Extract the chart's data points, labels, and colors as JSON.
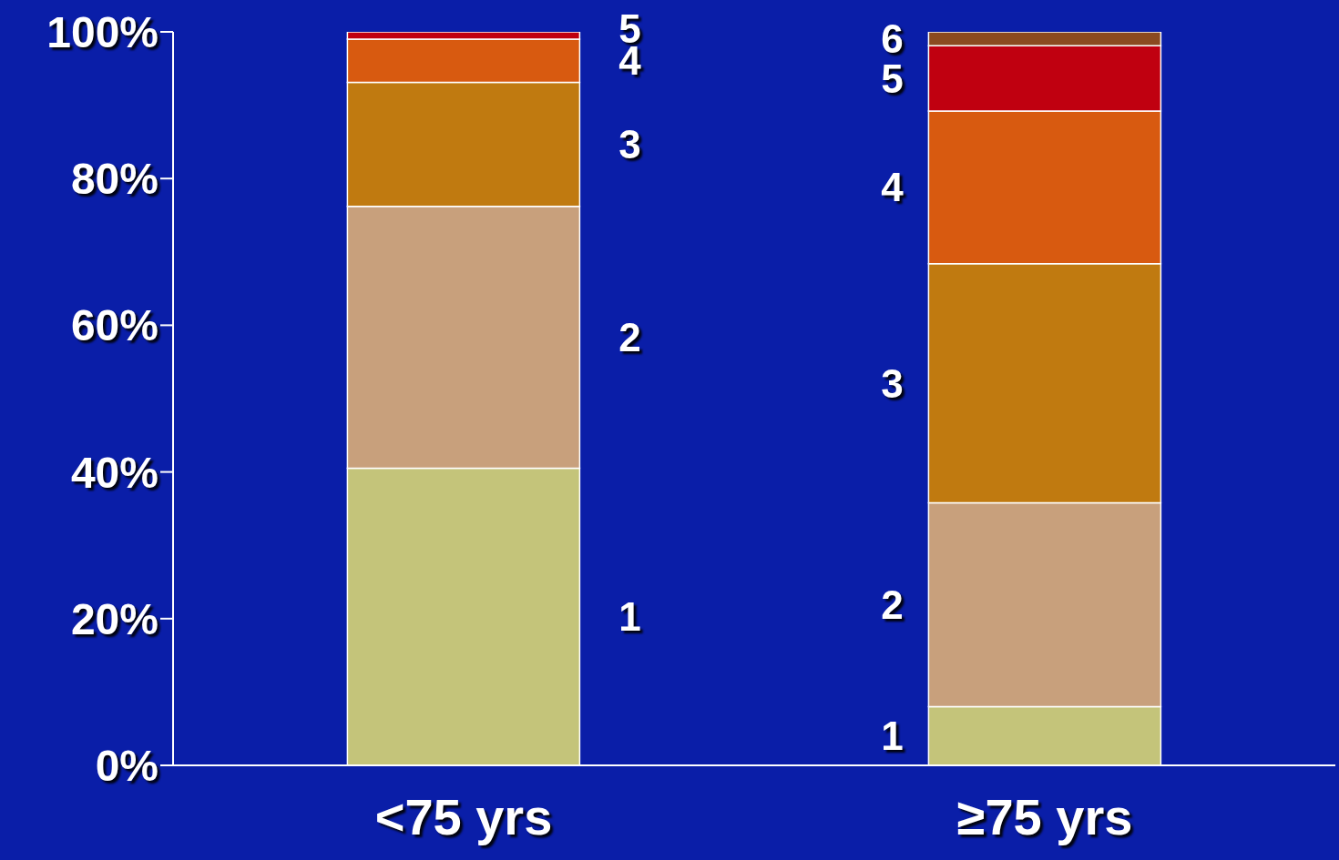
{
  "chart_data": {
    "type": "bar",
    "stacked": true,
    "categories": [
      "<75 yrs",
      "≥75 yrs"
    ],
    "series": [
      {
        "name": "1",
        "color": "#c4c47a",
        "values": [
          40.5,
          8
        ]
      },
      {
        "name": "2",
        "color": "#c8a07c",
        "values": [
          35.7,
          27.8
        ]
      },
      {
        "name": "3",
        "color": "#c07a10",
        "values": [
          16.9,
          32.6
        ]
      },
      {
        "name": "4",
        "color": "#d85a10",
        "values": [
          5.9,
          20.8
        ]
      },
      {
        "name": "5",
        "color": "#c00010",
        "values": [
          1.0,
          8.9
        ]
      },
      {
        "name": "6",
        "color": "#8b4a20",
        "values": [
          null,
          1.9
        ]
      }
    ],
    "ylim": [
      0,
      100
    ],
    "yticks": [
      {
        "value": 0,
        "label": "0%"
      },
      {
        "value": 20,
        "label": "20%"
      },
      {
        "value": 40,
        "label": "40%"
      },
      {
        "value": 60,
        "label": "60%"
      },
      {
        "value": 80,
        "label": "80%"
      },
      {
        "value": 100,
        "label": "100%"
      }
    ],
    "grid": false
  }
}
